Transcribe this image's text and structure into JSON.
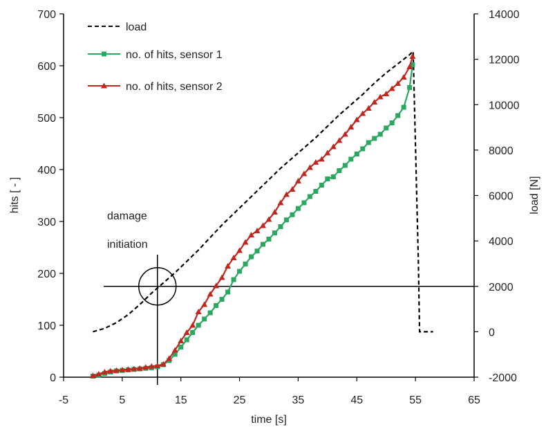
{
  "chart_data": {
    "type": "line",
    "xlabel": "time [s]",
    "ylabel": "hits [ - ]",
    "y2label": "load [N]",
    "xlim": [
      -5,
      65
    ],
    "ylim": [
      0,
      700
    ],
    "y2lim": [
      -2000,
      14000
    ],
    "xticks": [
      "-5",
      "5",
      "15",
      "25",
      "35",
      "45",
      "55",
      "65"
    ],
    "yticks": [
      "0",
      "100",
      "200",
      "300",
      "400",
      "500",
      "600",
      "700"
    ],
    "y2ticks": [
      "-2000",
      "0",
      "2000",
      "4000",
      "6000",
      "8000",
      "10000",
      "12000",
      "14000"
    ],
    "legend_position": "top-left",
    "annotation": {
      "line1": "damage",
      "line2": "initiation",
      "x": 11,
      "y": 175
    },
    "series": [
      {
        "name": "load",
        "axis": "right",
        "style": "dashed",
        "color": "#000000",
        "x": [
          0,
          2,
          4,
          6,
          8,
          10,
          12,
          14,
          16,
          18,
          20,
          22,
          24,
          26,
          28,
          30,
          32,
          34,
          36,
          38,
          40,
          42,
          44,
          46,
          48,
          50,
          52,
          54,
          54.6,
          55.5,
          55.7,
          58
        ],
        "y": [
          0,
          150,
          400,
          750,
          1200,
          1700,
          2150,
          2600,
          3100,
          3600,
          4150,
          4700,
          5200,
          5700,
          6200,
          6700,
          7200,
          7650,
          8100,
          8550,
          9050,
          9550,
          10000,
          10450,
          10950,
          11400,
          11800,
          12200,
          12350,
          3000,
          0,
          0
        ]
      },
      {
        "name": "no. of hits, sensor 1",
        "axis": "left",
        "color": "#2aa860",
        "marker": "square",
        "x": [
          0,
          1,
          2,
          3,
          4,
          5,
          6,
          7,
          8,
          9,
          10,
          11,
          12,
          13,
          14,
          15,
          16,
          17,
          18,
          19,
          20,
          21,
          22,
          23,
          24,
          25,
          26,
          27,
          28,
          29,
          30,
          31,
          32,
          33,
          34,
          35,
          36,
          37,
          38,
          39,
          40,
          41,
          42,
          43,
          44,
          45,
          46,
          47,
          48,
          49,
          50,
          51,
          52,
          53,
          54,
          54.5
        ],
        "y": [
          2,
          4,
          7,
          10,
          12,
          13,
          14,
          15,
          16,
          17,
          18,
          20,
          24,
          32,
          44,
          58,
          72,
          86,
          100,
          112,
          124,
          138,
          150,
          164,
          188,
          204,
          218,
          232,
          243,
          256,
          266,
          278,
          290,
          303,
          313,
          325,
          336,
          348,
          358,
          370,
          382,
          386,
          398,
          408,
          420,
          430,
          440,
          452,
          460,
          468,
          480,
          490,
          504,
          520,
          558,
          602
        ]
      },
      {
        "name": "no. of hits, sensor 2",
        "axis": "left",
        "color": "#c0271f",
        "marker": "triangle",
        "x": [
          0,
          1,
          2,
          3,
          4,
          5,
          6,
          7,
          8,
          9,
          10,
          11,
          12,
          13,
          14,
          15,
          16,
          17,
          18,
          19,
          20,
          21,
          22,
          23,
          24,
          25,
          26,
          27,
          28,
          29,
          30,
          31,
          32,
          33,
          34,
          35,
          36,
          37,
          38,
          39,
          40,
          41,
          42,
          43,
          44,
          45,
          46,
          47,
          48,
          49,
          50,
          51,
          52,
          53,
          54,
          54.5
        ],
        "y": [
          3,
          6,
          10,
          12,
          13,
          14,
          15,
          16,
          17,
          19,
          21,
          22,
          25,
          36,
          52,
          70,
          86,
          100,
          126,
          140,
          160,
          176,
          192,
          214,
          230,
          244,
          260,
          274,
          282,
          292,
          304,
          318,
          336,
          352,
          362,
          378,
          392,
          404,
          414,
          420,
          432,
          444,
          456,
          468,
          482,
          496,
          508,
          518,
          530,
          540,
          546,
          556,
          566,
          578,
          598,
          618
        ]
      }
    ]
  }
}
